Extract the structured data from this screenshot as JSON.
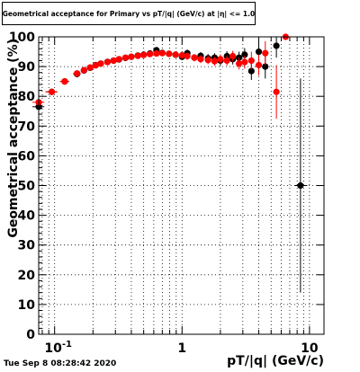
{
  "chart_data": {
    "type": "scatter",
    "title": "Geometrical acceptance for Primary vs pT/|q| (GeV/c) at |η| <= 1.0",
    "xlabel": "pT/|q| (GeV/c)",
    "ylabel": "Geometrical acceptance (%)",
    "xscale": "log",
    "xlim": [
      0.075,
      13
    ],
    "ylim": [
      0,
      100
    ],
    "x_ticklabels": [
      {
        "value": 0.1,
        "label": "10",
        "exp": "-1"
      },
      {
        "value": 1,
        "label": "1",
        "exp": ""
      },
      {
        "value": 10,
        "label": "10",
        "exp": ""
      }
    ],
    "y_ticks": [
      0,
      10,
      20,
      30,
      40,
      50,
      60,
      70,
      80,
      90,
      100
    ],
    "grid": true,
    "series": [
      {
        "color": "#000000",
        "points": [
          {
            "x": 0.075,
            "y": 76.5,
            "xerr": [
              0.008,
              0.008
            ],
            "yerr": 1.5
          },
          {
            "x": 0.095,
            "y": 81.5,
            "xerr": [
              0.01,
              0.01
            ],
            "yerr": 1.0
          },
          {
            "x": 0.12,
            "y": 85.0,
            "xerr": [
              0.01,
              0.01
            ],
            "yerr": 1.0
          },
          {
            "x": 0.15,
            "y": 87.5,
            "xerr": [
              0.01,
              0.01
            ],
            "yerr": 1.0
          },
          {
            "x": 0.17,
            "y": 88.7,
            "yerr": 0.8
          },
          {
            "x": 0.19,
            "y": 89.6,
            "yerr": 0.8
          },
          {
            "x": 0.21,
            "y": 90.5,
            "yerr": 0.7
          },
          {
            "x": 0.23,
            "y": 91.0,
            "yerr": 0.7
          },
          {
            "x": 0.26,
            "y": 91.6,
            "yerr": 0.7
          },
          {
            "x": 0.29,
            "y": 92.0,
            "yerr": 0.7
          },
          {
            "x": 0.32,
            "y": 92.4,
            "yerr": 0.7
          },
          {
            "x": 0.36,
            "y": 92.9,
            "yerr": 0.7
          },
          {
            "x": 0.4,
            "y": 93.3,
            "yerr": 0.7
          },
          {
            "x": 0.45,
            "y": 93.7,
            "yerr": 0.7
          },
          {
            "x": 0.5,
            "y": 94.0,
            "yerr": 0.8
          },
          {
            "x": 0.56,
            "y": 94.4,
            "yerr": 0.8
          },
          {
            "x": 0.63,
            "y": 95.5,
            "yerr": 0.9
          },
          {
            "x": 0.7,
            "y": 94.6,
            "yerr": 0.9
          },
          {
            "x": 0.79,
            "y": 94.3,
            "yerr": 1.0
          },
          {
            "x": 0.89,
            "y": 94.0,
            "yerr": 1.0
          },
          {
            "x": 1.0,
            "y": 93.3,
            "yerr": 1.1
          },
          {
            "x": 1.1,
            "y": 94.5,
            "yerr": 1.2
          },
          {
            "x": 1.25,
            "y": 93.0,
            "yerr": 1.2
          },
          {
            "x": 1.4,
            "y": 93.6,
            "yerr": 1.3
          },
          {
            "x": 1.6,
            "y": 92.8,
            "yerr": 1.4
          },
          {
            "x": 1.8,
            "y": 93.0,
            "yerr": 1.5
          },
          {
            "x": 2.0,
            "y": 92.0,
            "yerr": 1.6
          },
          {
            "x": 2.25,
            "y": 93.5,
            "yerr": 1.7
          },
          {
            "x": 2.5,
            "y": 92.5,
            "yerr": 1.8
          },
          {
            "x": 2.8,
            "y": 93.0,
            "yerr": 2.0
          },
          {
            "x": 3.1,
            "y": 94.0,
            "yerr": 2.2
          },
          {
            "x": 3.5,
            "y": 88.5,
            "yerr": 3.0
          },
          {
            "x": 4.0,
            "y": 95.0,
            "yerr": 3.5
          },
          {
            "x": 4.5,
            "y": 90.0,
            "yerr": 4.0
          },
          {
            "x": 5.5,
            "y": 97.0,
            "yerr": 4.0
          },
          {
            "x": 8.5,
            "y": 50.0,
            "xerr": [
              0.9,
              1.1
            ],
            "yerr": 36.0
          }
        ]
      },
      {
        "color": "#ff0000",
        "points": [
          {
            "x": 0.075,
            "y": 78.0,
            "xerr": [
              0.008,
              0.008
            ],
            "yerr": 1.5
          },
          {
            "x": 0.095,
            "y": 81.5,
            "xerr": [
              0.01,
              0.01
            ],
            "yerr": 1.0
          },
          {
            "x": 0.12,
            "y": 85.0,
            "xerr": [
              0.01,
              0.01
            ],
            "yerr": 1.0
          },
          {
            "x": 0.15,
            "y": 87.7,
            "xerr": [
              0.01,
              0.01
            ],
            "yerr": 1.0
          },
          {
            "x": 0.17,
            "y": 88.8,
            "yerr": 0.8
          },
          {
            "x": 0.19,
            "y": 89.7,
            "yerr": 0.8
          },
          {
            "x": 0.21,
            "y": 90.4,
            "yerr": 0.7
          },
          {
            "x": 0.23,
            "y": 91.0,
            "yerr": 0.7
          },
          {
            "x": 0.26,
            "y": 91.5,
            "yerr": 0.7
          },
          {
            "x": 0.29,
            "y": 92.0,
            "yerr": 0.7
          },
          {
            "x": 0.32,
            "y": 92.5,
            "yerr": 0.7
          },
          {
            "x": 0.36,
            "y": 93.0,
            "yerr": 0.7
          },
          {
            "x": 0.4,
            "y": 93.3,
            "yerr": 0.7
          },
          {
            "x": 0.45,
            "y": 93.6,
            "yerr": 0.7
          },
          {
            "x": 0.5,
            "y": 93.9,
            "yerr": 0.8
          },
          {
            "x": 0.56,
            "y": 94.2,
            "yerr": 0.8
          },
          {
            "x": 0.63,
            "y": 94.4,
            "yerr": 0.9
          },
          {
            "x": 0.7,
            "y": 94.5,
            "yerr": 0.9
          },
          {
            "x": 0.79,
            "y": 94.3,
            "yerr": 1.0
          },
          {
            "x": 0.89,
            "y": 94.0,
            "yerr": 1.0
          },
          {
            "x": 1.0,
            "y": 93.8,
            "yerr": 1.1
          },
          {
            "x": 1.1,
            "y": 93.5,
            "yerr": 1.2
          },
          {
            "x": 1.25,
            "y": 93.0,
            "yerr": 1.2
          },
          {
            "x": 1.4,
            "y": 92.5,
            "yerr": 1.3
          },
          {
            "x": 1.6,
            "y": 92.2,
            "yerr": 1.4
          },
          {
            "x": 1.8,
            "y": 91.8,
            "yerr": 1.5
          },
          {
            "x": 2.0,
            "y": 92.5,
            "yerr": 1.6
          },
          {
            "x": 2.25,
            "y": 92.0,
            "yerr": 1.7
          },
          {
            "x": 2.5,
            "y": 93.5,
            "yerr": 1.8
          },
          {
            "x": 2.8,
            "y": 91.0,
            "yerr": 2.0
          },
          {
            "x": 3.1,
            "y": 91.5,
            "yerr": 2.2
          },
          {
            "x": 3.5,
            "y": 92.0,
            "yerr": 3.0
          },
          {
            "x": 4.0,
            "y": 90.5,
            "yerr": 3.5
          },
          {
            "x": 4.5,
            "y": 94.5,
            "yerr": 4.0
          },
          {
            "x": 5.5,
            "y": 81.5,
            "yerr": 9.0
          },
          {
            "x": 6.5,
            "y": 100.0,
            "yerr": 0.5
          }
        ]
      }
    ]
  },
  "footer": {
    "timestamp": "Tue Sep  8 08:28:42 2020"
  }
}
